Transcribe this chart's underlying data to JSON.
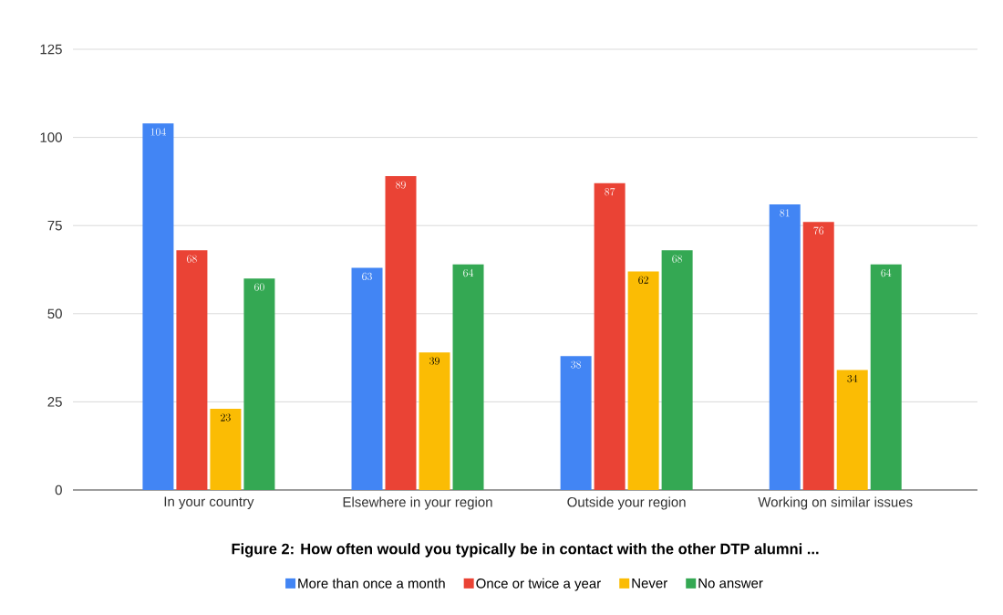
{
  "chart_data": {
    "type": "bar",
    "title": "Figure 2: How often would you typically be in contact with the other DTP alumni ...",
    "categories": [
      "In your country",
      "Elsewhere in your region",
      "Outside your region",
      "Working on similar issues"
    ],
    "series": [
      {
        "name": "More than once a month",
        "color": "#4285f4",
        "values": [
          104,
          63,
          38,
          81
        ]
      },
      {
        "name": "Once or twice a year",
        "color": "#ea4335",
        "values": [
          68,
          89,
          87,
          76
        ]
      },
      {
        "name": "Never",
        "color": "#fbbc04",
        "values": [
          23,
          39,
          62,
          34
        ]
      },
      {
        "name": "No answer",
        "color": "#34a853",
        "values": [
          60,
          64,
          68,
          64
        ]
      }
    ],
    "ylim": [
      0,
      125
    ],
    "yticks": [
      0,
      25,
      50,
      75,
      100,
      125
    ],
    "grid": "y",
    "legend": "bottom",
    "data_labels": true
  }
}
